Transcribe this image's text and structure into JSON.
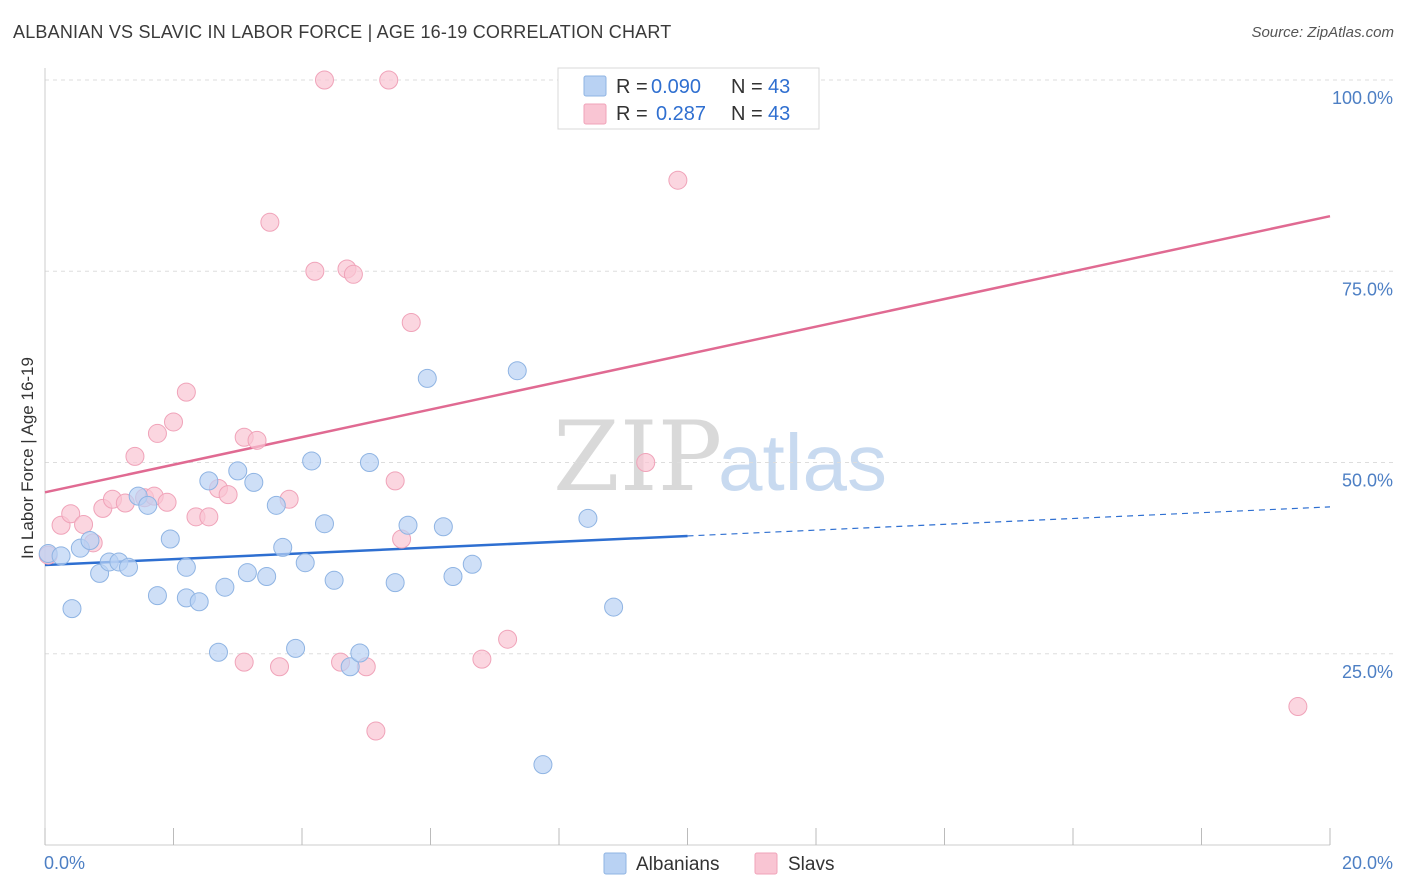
{
  "title": "ALBANIAN VS SLAVIC IN LABOR FORCE | AGE 16-19 CORRELATION CHART",
  "source": "Source: ZipAtlas.com",
  "watermark": {
    "zip": "ZIP",
    "atlas": "atlas"
  },
  "legend": {
    "rows": [
      {
        "r_label": "R = ",
        "r_value": "0.090",
        "n_label": "N = ",
        "n_value": "43"
      },
      {
        "r_label": "R = ",
        "r_value": "0.287",
        "n_label": "N = ",
        "n_value": "43"
      }
    ]
  },
  "colors": {
    "albanians_fill": "#b9d2f3",
    "albanians_stroke": "#8fb4e3",
    "albanians_line": "#2e6fd1",
    "slavs_fill": "#f9c5d3",
    "slavs_stroke": "#f0a3b9",
    "slavs_line": "#e06a92",
    "axis_text": "#4d7fc4",
    "grid": "#dddddd"
  },
  "chart_data": {
    "type": "scatter",
    "xlabel": "",
    "ylabel": "In Labor Force | Age 16-19",
    "xlim": [
      0,
      20
    ],
    "ylim": [
      0,
      100
    ],
    "x_tick_labels": [
      "0.0%",
      "20.0%"
    ],
    "y_tick_labels": [
      "25.0%",
      "50.0%",
      "75.0%",
      "100.0%"
    ],
    "y_ticks": [
      25,
      50,
      75,
      100
    ],
    "grid": true,
    "legend_position": "top-center and bottom",
    "series": [
      {
        "name": "Albanians",
        "R": 0.09,
        "N": 43,
        "trend": {
          "x0": 0,
          "y0": 36.6,
          "x1": 10,
          "y1": 40.4,
          "dashed_to_x": 20,
          "dashed_to_y": 44.2
        },
        "points": [
          [
            0.05,
            38.1
          ],
          [
            0.25,
            37.8
          ],
          [
            0.42,
            30.9
          ],
          [
            0.55,
            38.8
          ],
          [
            0.7,
            39.8
          ],
          [
            0.85,
            35.5
          ],
          [
            1.0,
            37.0
          ],
          [
            1.15,
            37.0
          ],
          [
            1.3,
            36.3
          ],
          [
            1.45,
            45.6
          ],
          [
            1.6,
            44.4
          ],
          [
            1.75,
            32.6
          ],
          [
            1.95,
            40.0
          ],
          [
            2.2,
            32.3
          ],
          [
            2.2,
            36.3
          ],
          [
            2.4,
            31.8
          ],
          [
            2.55,
            47.6
          ],
          [
            2.7,
            25.2
          ],
          [
            2.8,
            33.7
          ],
          [
            3.0,
            48.9
          ],
          [
            3.15,
            35.6
          ],
          [
            3.25,
            47.4
          ],
          [
            3.45,
            35.1
          ],
          [
            3.6,
            44.4
          ],
          [
            3.7,
            38.9
          ],
          [
            3.9,
            25.7
          ],
          [
            4.05,
            36.9
          ],
          [
            4.15,
            50.2
          ],
          [
            4.35,
            42.0
          ],
          [
            4.5,
            34.6
          ],
          [
            4.75,
            23.3
          ],
          [
            4.9,
            25.1
          ],
          [
            5.05,
            50.0
          ],
          [
            5.45,
            34.3
          ],
          [
            5.65,
            41.8
          ],
          [
            5.95,
            61.0
          ],
          [
            6.2,
            41.6
          ],
          [
            6.35,
            35.1
          ],
          [
            6.65,
            36.7
          ],
          [
            7.35,
            62.0
          ],
          [
            7.75,
            10.5
          ],
          [
            8.45,
            42.7
          ],
          [
            8.85,
            31.1
          ]
        ]
      },
      {
        "name": "Slavs",
        "R": 0.287,
        "N": 43,
        "trend": {
          "x0": 0,
          "y0": 46.1,
          "x1": 20,
          "y1": 82.2
        },
        "points": [
          [
            0.05,
            37.9
          ],
          [
            0.25,
            41.8
          ],
          [
            0.4,
            43.3
          ],
          [
            0.6,
            41.9
          ],
          [
            0.75,
            39.5
          ],
          [
            0.9,
            44.0
          ],
          [
            1.05,
            45.2
          ],
          [
            1.25,
            44.7
          ],
          [
            1.4,
            50.8
          ],
          [
            1.55,
            45.4
          ],
          [
            1.7,
            45.6
          ],
          [
            1.75,
            53.8
          ],
          [
            1.9,
            44.8
          ],
          [
            2.0,
            55.3
          ],
          [
            2.2,
            59.2
          ],
          [
            2.35,
            42.9
          ],
          [
            2.55,
            42.9
          ],
          [
            2.7,
            46.6
          ],
          [
            2.85,
            45.8
          ],
          [
            3.1,
            23.9
          ],
          [
            3.1,
            53.3
          ],
          [
            3.3,
            52.9
          ],
          [
            3.5,
            81.4
          ],
          [
            3.65,
            23.3
          ],
          [
            3.8,
            45.2
          ],
          [
            4.2,
            75.0
          ],
          [
            4.35,
            100.0
          ],
          [
            4.6,
            23.9
          ],
          [
            4.7,
            75.3
          ],
          [
            4.8,
            74.6
          ],
          [
            5.0,
            23.3
          ],
          [
            5.15,
            14.9
          ],
          [
            5.35,
            100.0
          ],
          [
            5.45,
            47.6
          ],
          [
            5.55,
            40.0
          ],
          [
            5.7,
            68.3
          ],
          [
            6.8,
            24.3
          ],
          [
            7.2,
            26.9
          ],
          [
            9.35,
            50.0
          ],
          [
            9.85,
            86.9
          ],
          [
            10.05,
            100.0
          ],
          [
            11.1,
            100.0
          ],
          [
            19.5,
            18.1
          ]
        ]
      }
    ]
  }
}
